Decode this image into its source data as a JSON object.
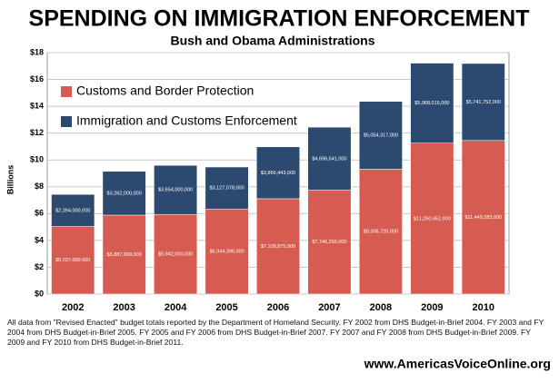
{
  "chart_data": {
    "type": "stacked_bar",
    "title": "SPENDING ON IMMIGRATION ENFORCEMENT",
    "subtitle": "Bush and Obama Administrations",
    "y_label": "Billions",
    "categories": [
      "2002",
      "2003",
      "2004",
      "2005",
      "2006",
      "2007",
      "2008",
      "2009",
      "2010"
    ],
    "series": [
      {
        "name": "Customs and Border Protection",
        "color": "#d65b50",
        "values": [
          5.037,
          5.887,
          5.942,
          6.344398,
          7.109875,
          7.746259,
          9.306725,
          11.250652,
          11.449283
        ],
        "value_labels": [
          "$5,037,000,000",
          "$5,887,000,000",
          "$5,942,000,000",
          "$6,344,398,000",
          "$7,109,875,000",
          "$7,746,259,000",
          "$9,306,725,000",
          "$11,250,652,000",
          "$11,449,283,000"
        ]
      },
      {
        "name": "Immigration and Customs Enforcement",
        "color": "#2c4a70",
        "values": [
          2.394,
          3.262,
          3.654,
          3.127078,
          3.866443,
          4.696641,
          5.054317,
          5.968015,
          5.741752
        ],
        "value_labels": [
          "$2,394,000,000",
          "$3,262,000,000",
          "$3,654,000,000",
          "$3,127,078,000",
          "$3,866,443,000",
          "$4,696,641,000",
          "$5,054,317,000",
          "$5,968,015,000",
          "$5,741,752,000"
        ]
      }
    ],
    "ylim": [
      0,
      18
    ],
    "yticks": [
      {
        "value": 0,
        "label": "$0"
      },
      {
        "value": 2,
        "label": "$2"
      },
      {
        "value": 4,
        "label": "$4"
      },
      {
        "value": 6,
        "label": "$6"
      },
      {
        "value": 8,
        "label": "$8"
      },
      {
        "value": 10,
        "label": "$10"
      },
      {
        "value": 12,
        "label": "$12"
      },
      {
        "value": 14,
        "label": "$14"
      },
      {
        "value": 16,
        "label": "$16"
      },
      {
        "value": 18,
        "label": "$18"
      }
    ],
    "grid": true,
    "legend": "upper-left",
    "footnote": "All data from \"Revised Enacted\" budget totals reported by the Department of Homeland Security. FY 2002 from DHS Budget-in-Brief 2004. FY 2003 and FY 2004 from DHS Budget-in-Brief 2005. FY 2005 and FY 2006 from DHS Budget-in-Brief 2007. FY 2007 and FY 2008 from DHS Budget-in-Brief 2009. FY 2009 and FY 2010 from DHS Budget-in-Brief 2011.",
    "source": "www.AmericasVoiceOnline.org"
  }
}
